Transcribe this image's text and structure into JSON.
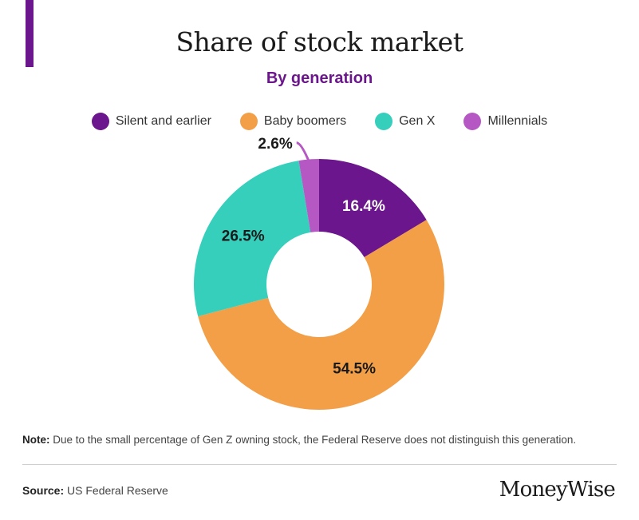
{
  "header": {
    "title": "Share of stock market",
    "subtitle": "By generation",
    "accent_color": "#6b168c",
    "subtitle_color": "#6b168c"
  },
  "chart_data": {
    "type": "pie",
    "title": "Share of stock market",
    "subtitle": "By generation",
    "legend_position": "top",
    "donut": true,
    "slices": [
      {
        "name": "Silent and earlier",
        "value": 16.4,
        "label": "16.4%",
        "color": "#6b168c",
        "label_color": "#ffffff"
      },
      {
        "name": "Baby boomers",
        "value": 54.5,
        "label": "54.5%",
        "color": "#f39f47",
        "label_color": "#1a1a1a"
      },
      {
        "name": "Gen X",
        "value": 26.5,
        "label": "26.5%",
        "color": "#35cfbc",
        "label_color": "#1a1a1a"
      },
      {
        "name": "Millennials",
        "value": 2.6,
        "label": "2.6%",
        "color": "#b658c4",
        "label_color": "#1a1a1a"
      }
    ]
  },
  "footer": {
    "note_label": "Note:",
    "note_text": " Due to the small percentage of Gen Z owning stock, the Federal Reserve does not distinguish this generation.",
    "source_label": "Source:",
    "source_text": " US Federal Reserve",
    "brand": "MoneyWise"
  }
}
